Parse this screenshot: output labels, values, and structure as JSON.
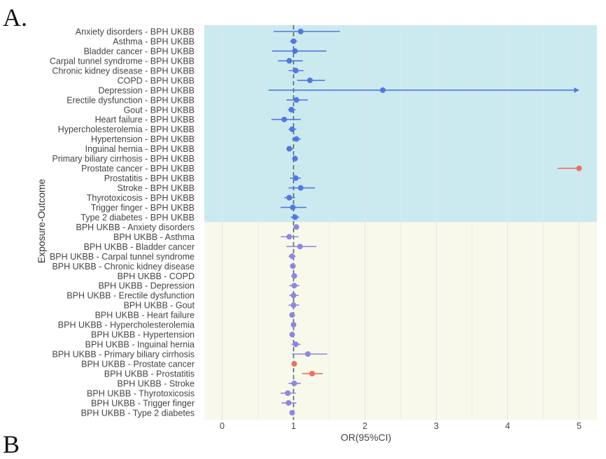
{
  "panel_labels": {
    "a": "A.",
    "b": "B"
  },
  "colors": {
    "top_band": "#cbeaf0",
    "bottom_band": "#f8f9ea",
    "grid": "#dfe6e6",
    "ref_line": "#4e6e70",
    "top_series": "#4f78e3",
    "bottom_series": "#8e86e2",
    "significant": "#ef6f61"
  },
  "chart_data": {
    "type": "scatter",
    "subtype": "forest-plot",
    "title": "",
    "xlabel": "OR(95%CI)",
    "ylabel": "Exposure-Outcome",
    "xlim": [
      -0.25,
      5.25
    ],
    "xticks": [
      0,
      1,
      2,
      3,
      4,
      5
    ],
    "reference_line": 1,
    "grid": true,
    "rows": [
      {
        "label": "Anxiety disorders - BPH UKBB",
        "or": 1.1,
        "lo": 0.72,
        "hi": 1.65,
        "group": "top"
      },
      {
        "label": "Asthma - BPH UKBB",
        "or": 1.0,
        "lo": 0.95,
        "hi": 1.05,
        "group": "top"
      },
      {
        "label": "Bladder cancer - BPH UKBB",
        "or": 1.02,
        "lo": 0.7,
        "hi": 1.46,
        "group": "top"
      },
      {
        "label": "Carpal tunnel syndrome - BPH UKBB",
        "or": 0.94,
        "lo": 0.78,
        "hi": 1.13,
        "group": "top"
      },
      {
        "label": "Chronic kidney disease - BPH UKBB",
        "or": 1.03,
        "lo": 0.93,
        "hi": 1.14,
        "group": "top"
      },
      {
        "label": "COPD - BPH UKBB",
        "or": 1.23,
        "lo": 1.05,
        "hi": 1.44,
        "group": "top"
      },
      {
        "label": "Depression - BPH UKBB",
        "or": 2.25,
        "lo": 0.65,
        "hi": 5.0,
        "group": "top",
        "arrow": true
      },
      {
        "label": "Erectile dysfunction - BPH UKBB",
        "or": 1.04,
        "lo": 0.9,
        "hi": 1.2,
        "group": "top"
      },
      {
        "label": "Gout - BPH UKBB",
        "or": 0.97,
        "lo": 0.92,
        "hi": 1.03,
        "group": "top"
      },
      {
        "label": "Heart failure - BPH UKBB",
        "or": 0.87,
        "lo": 0.69,
        "hi": 1.1,
        "group": "top"
      },
      {
        "label": "Hypercholesterolemia - BPH UKBB",
        "or": 0.98,
        "lo": 0.93,
        "hi": 1.04,
        "group": "top"
      },
      {
        "label": "Hypertension - BPH UKBB",
        "or": 1.04,
        "lo": 0.98,
        "hi": 1.1,
        "group": "top"
      },
      {
        "label": "Inguinal hernia - BPH UKBB",
        "or": 0.94,
        "lo": 0.9,
        "hi": 1.0,
        "group": "top"
      },
      {
        "label": "Primary biliary cirrhosis - BPH UKBB",
        "or": 1.02,
        "lo": 1.0,
        "hi": 1.04,
        "group": "top"
      },
      {
        "label": "Prostate cancer - BPH UKBB",
        "or": 5.0,
        "lo": 4.7,
        "hi": 5.0,
        "group": "top",
        "significant": true
      },
      {
        "label": "Prostatitis - BPH UKBB",
        "or": 1.03,
        "lo": 0.95,
        "hi": 1.1,
        "group": "top"
      },
      {
        "label": "Stroke - BPH UKBB",
        "or": 1.1,
        "lo": 0.93,
        "hi": 1.3,
        "group": "top"
      },
      {
        "label": "Thyrotoxicosis - BPH UKBB",
        "or": 0.94,
        "lo": 0.87,
        "hi": 1.02,
        "group": "top"
      },
      {
        "label": "Trigger finger - BPH UKBB",
        "or": 0.99,
        "lo": 0.82,
        "hi": 1.18,
        "group": "top"
      },
      {
        "label": "Type 2 diabetes - BPH UKBB",
        "or": 1.02,
        "lo": 0.96,
        "hi": 1.08,
        "group": "top"
      },
      {
        "label": "BPH UKBB - Anxiety disorders",
        "or": 1.04,
        "lo": 1.0,
        "hi": 1.08,
        "group": "bottom"
      },
      {
        "label": "BPH UKBB - Asthma",
        "or": 0.94,
        "lo": 0.82,
        "hi": 1.07,
        "group": "bottom"
      },
      {
        "label": "BPH UKBB - Bladder cancer",
        "or": 1.09,
        "lo": 0.9,
        "hi": 1.32,
        "group": "bottom"
      },
      {
        "label": "BPH UKBB - Carpal tunnel syndrome",
        "or": 0.98,
        "lo": 0.93,
        "hi": 1.03,
        "group": "bottom"
      },
      {
        "label": "BPH UKBB - Chronic kidney disease",
        "or": 0.99,
        "lo": 0.95,
        "hi": 1.03,
        "group": "bottom"
      },
      {
        "label": "BPH UKBB - COPD",
        "or": 1.01,
        "lo": 0.97,
        "hi": 1.05,
        "group": "bottom"
      },
      {
        "label": "BPH UKBB - Depression",
        "or": 1.01,
        "lo": 0.94,
        "hi": 1.08,
        "group": "bottom"
      },
      {
        "label": "BPH UKBB - Erectile dysfunction",
        "or": 1.0,
        "lo": 0.94,
        "hi": 1.07,
        "group": "bottom"
      },
      {
        "label": "BPH UKBB - Gout",
        "or": 1.0,
        "lo": 0.93,
        "hi": 1.08,
        "group": "bottom"
      },
      {
        "label": "BPH UKBB - Heart failure",
        "or": 0.98,
        "lo": 0.94,
        "hi": 1.02,
        "group": "bottom"
      },
      {
        "label": "BPH UKBB - Hypercholesterolemia",
        "or": 1.0,
        "lo": 0.97,
        "hi": 1.03,
        "group": "bottom"
      },
      {
        "label": "BPH UKBB - Hypertension",
        "or": 0.98,
        "lo": 0.95,
        "hi": 1.01,
        "group": "bottom"
      },
      {
        "label": "BPH UKBB - Inguinal hernia",
        "or": 1.03,
        "lo": 0.97,
        "hi": 1.1,
        "group": "bottom"
      },
      {
        "label": "BPH UKBB - Primary biliary cirrhosis",
        "or": 1.2,
        "lo": 0.98,
        "hi": 1.47,
        "group": "bottom"
      },
      {
        "label": "BPH UKBB - Prostate cancer",
        "or": 1.01,
        "lo": 1.0,
        "hi": 1.02,
        "group": "bottom",
        "significant": true
      },
      {
        "label": "BPH UKBB - Prostatitis",
        "or": 1.26,
        "lo": 1.12,
        "hi": 1.41,
        "group": "bottom",
        "significant": true
      },
      {
        "label": "BPH UKBB - Stroke",
        "or": 1.01,
        "lo": 0.93,
        "hi": 1.1,
        "group": "bottom"
      },
      {
        "label": "BPH UKBB - Thyrotoxicosis",
        "or": 0.92,
        "lo": 0.82,
        "hi": 1.03,
        "group": "bottom"
      },
      {
        "label": "BPH UKBB - Trigger finger",
        "or": 0.93,
        "lo": 0.83,
        "hi": 1.04,
        "group": "bottom"
      },
      {
        "label": "BPH UKBB - Type 2 diabetes",
        "or": 0.98,
        "lo": 0.95,
        "hi": 1.01,
        "group": "bottom"
      }
    ]
  }
}
